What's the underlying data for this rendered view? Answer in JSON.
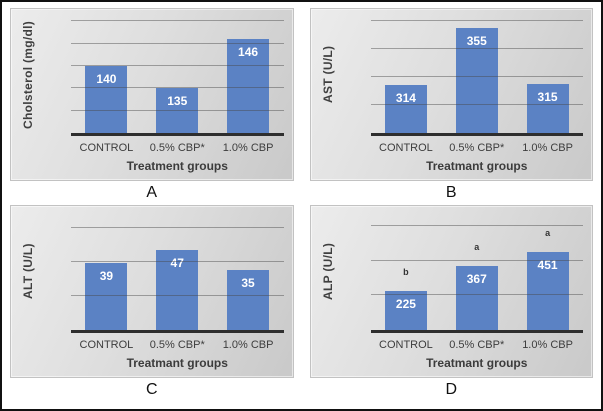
{
  "chart_data": [
    {
      "type": "bar",
      "panel_letter": "A",
      "ylabel": "Cholsterol (mg/dl)",
      "xlabel": "Treatment groups",
      "categories": [
        "CONTROL",
        "0.5% CBP*",
        "1.0% CBP"
      ],
      "values": [
        140,
        135,
        146
      ],
      "bar_labels": [
        "140",
        "135",
        "146"
      ],
      "sig_letters": [
        "",
        "",
        ""
      ],
      "ylim": [
        125,
        151
      ],
      "gridlines": [
        130,
        135,
        140,
        145,
        150
      ],
      "grid": true,
      "legend_position": "none"
    },
    {
      "type": "bar",
      "panel_letter": "B",
      "ylabel": "AST (U/L)",
      "xlabel": "Treatmant groups",
      "categories": [
        "CONTROL",
        "0.5% CBP*",
        "1.0% CBP"
      ],
      "values": [
        314,
        355,
        315
      ],
      "bar_labels": [
        "314",
        "355",
        "315"
      ],
      "sig_letters": [
        "",
        "",
        ""
      ],
      "ylim": [
        280,
        363
      ],
      "gridlines": [
        300,
        320,
        340,
        360
      ],
      "grid": true,
      "legend_position": "none"
    },
    {
      "type": "bar",
      "panel_letter": "C",
      "ylabel": "ALT (U/L)",
      "xlabel": "Treatmant groups",
      "categories": [
        "CONTROL",
        "0.5% CBP*",
        "1.0% CBP"
      ],
      "values": [
        39,
        47,
        35
      ],
      "bar_labels": [
        "39",
        "47",
        "35"
      ],
      "sig_letters": [
        "",
        "",
        ""
      ],
      "ylim": [
        0,
        68
      ],
      "gridlines": [
        20,
        40,
        60
      ],
      "grid": true,
      "legend_position": "none"
    },
    {
      "type": "bar",
      "panel_letter": "D",
      "ylabel": "ALP (U/L)",
      "xlabel": "Treatmant groups",
      "categories": [
        "CONTROL",
        "0.5% CBP*",
        "1.0% CBP"
      ],
      "values": [
        225,
        367,
        451
      ],
      "bar_labels": [
        "225",
        "367",
        "451"
      ],
      "sig_letters": [
        "b",
        "a",
        "a"
      ],
      "ylim": [
        0,
        670
      ],
      "gridlines": [
        200,
        400,
        600
      ],
      "grid": true,
      "legend_position": "none"
    }
  ],
  "colors": {
    "bar": "#5b82c4",
    "axis_line": "#2e2e2e",
    "gridline": "#5a5a5a",
    "tick_text": "#3d3d3d",
    "value_label": "#ffffff",
    "figure_border": "#111111"
  }
}
